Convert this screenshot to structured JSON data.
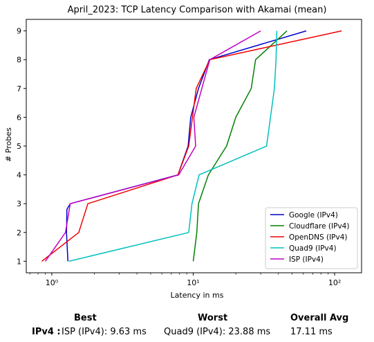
{
  "chart_data": {
    "type": "line",
    "title": "April_2023: TCP Latency Comparison with Akamai (mean)",
    "xlabel": "Latency in ms",
    "ylabel": "# Probes",
    "xscale": "log",
    "xlim": [
      0.66,
      155
    ],
    "ylim": [
      0.6,
      9.4
    ],
    "xticks": [
      {
        "value": 1,
        "label": "10⁰"
      },
      {
        "value": 10,
        "label": "10¹"
      },
      {
        "value": 100,
        "label": "10²"
      }
    ],
    "yticks": [
      1,
      2,
      3,
      4,
      5,
      6,
      7,
      8,
      9
    ],
    "grid": false,
    "legend_position": "bottom-right",
    "series": [
      {
        "name": "Google (IPv4)",
        "color": "#0000cc",
        "x": [
          1.3,
          1.27,
          1.28,
          1.35,
          7.8,
          9.2,
          9.6,
          10.9,
          13.0,
          63.0
        ],
        "y": [
          1,
          2,
          2.8,
          3,
          4,
          5,
          6,
          7,
          8,
          9
        ]
      },
      {
        "name": "Cloudflare (IPv4)",
        "color": "#008000",
        "x": [
          10.0,
          10.6,
          10.9,
          12.8,
          17.2,
          20.0,
          25.7,
          27.6,
          46.0
        ],
        "y": [
          1,
          2,
          3,
          4,
          5,
          6,
          7,
          8,
          9
        ]
      },
      {
        "name": "OpenDNS (IPv4)",
        "color": "#ee0000",
        "x": [
          0.85,
          1.55,
          1.8,
          7.8,
          9.3,
          10.5,
          13.1,
          112.0
        ],
        "y": [
          1,
          2,
          3,
          4,
          5,
          7,
          8,
          9
        ]
      },
      {
        "name": "Quad9 (IPv4)",
        "color": "#00bfbf",
        "x": [
          1.32,
          9.3,
          9.8,
          11.0,
          33.0,
          37.5,
          38.5,
          39.0
        ],
        "y": [
          1,
          2,
          3,
          4,
          5,
          7,
          8,
          9
        ]
      },
      {
        "name": "ISP (IPv4)",
        "color": "#c000c0",
        "x": [
          0.9,
          1.25,
          1.35,
          7.9,
          10.4,
          10.1,
          13.1,
          30.0
        ],
        "y": [
          1,
          2,
          3,
          4,
          5,
          6,
          8,
          9
        ]
      }
    ]
  },
  "summary": {
    "headers": {
      "best": "Best",
      "worst": "Worst",
      "avg": "Overall Avg"
    },
    "row_label": "IPv4 :",
    "best": "ISP (IPv4): 9.63 ms",
    "worst": "Quad9 (IPv4): 23.88 ms",
    "avg": "17.11 ms"
  }
}
